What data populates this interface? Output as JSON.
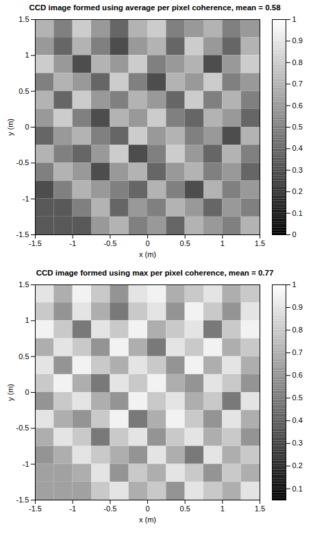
{
  "chart_data": [
    {
      "type": "heatmap",
      "title": "CCD image formed using average per pixel coherence, mean = 0.58",
      "xlabel": "x (m)",
      "ylabel": "y (m)",
      "xlim": [
        -1.5,
        1.5
      ],
      "ylim": [
        -1.5,
        1.5
      ],
      "xticks": [
        -1.5,
        -1,
        -0.5,
        0,
        0.5,
        1,
        1.5
      ],
      "yticks": [
        -1.5,
        -1,
        -0.5,
        0,
        0.5,
        1,
        1.5
      ],
      "x": [
        -1.375,
        -1.125,
        -0.875,
        -0.625,
        -0.375,
        -0.125,
        0.125,
        0.375,
        0.625,
        0.875,
        1.125,
        1.375
      ],
      "y": [
        1.375,
        1.125,
        0.875,
        0.625,
        0.375,
        0.125,
        -0.125,
        -0.375,
        -0.625,
        -0.875,
        -1.125,
        -1.375
      ],
      "cells": [
        [
          0.7,
          0.5,
          0.8,
          0.6,
          0.4,
          0.7,
          0.8,
          0.5,
          0.6,
          0.7,
          0.5,
          0.6
        ],
        [
          0.6,
          0.4,
          0.7,
          0.5,
          0.3,
          0.6,
          0.7,
          0.4,
          0.8,
          0.6,
          0.4,
          0.7
        ],
        [
          0.8,
          0.6,
          0.3,
          0.7,
          0.6,
          0.8,
          0.5,
          0.6,
          0.7,
          0.3,
          0.6,
          0.8
        ],
        [
          0.5,
          0.7,
          0.6,
          0.4,
          0.8,
          0.5,
          0.3,
          0.7,
          0.6,
          0.8,
          0.5,
          0.6
        ],
        [
          0.7,
          0.4,
          0.8,
          0.6,
          0.5,
          0.7,
          0.6,
          0.4,
          0.8,
          0.5,
          0.7,
          0.5
        ],
        [
          0.6,
          0.8,
          0.5,
          0.3,
          0.7,
          0.6,
          0.8,
          0.5,
          0.4,
          0.7,
          0.6,
          0.4
        ],
        [
          0.4,
          0.6,
          0.7,
          0.5,
          0.4,
          0.8,
          0.6,
          0.7,
          0.5,
          0.6,
          0.3,
          0.7
        ],
        [
          0.7,
          0.5,
          0.4,
          0.6,
          0.8,
          0.3,
          0.5,
          0.8,
          0.6,
          0.4,
          0.7,
          0.5
        ],
        [
          0.5,
          0.7,
          0.6,
          0.3,
          0.6,
          0.7,
          0.4,
          0.6,
          0.7,
          0.5,
          0.6,
          0.4
        ],
        [
          0.3,
          0.5,
          0.7,
          0.6,
          0.5,
          0.4,
          0.7,
          0.5,
          0.3,
          0.7,
          0.5,
          0.6
        ],
        [
          0.35,
          0.35,
          0.5,
          0.7,
          0.4,
          0.6,
          0.5,
          0.7,
          0.6,
          0.4,
          0.6,
          0.5
        ],
        [
          0.35,
          0.35,
          0.35,
          0.6,
          0.7,
          0.5,
          0.6,
          0.4,
          0.7,
          0.6,
          0.5,
          0.7
        ]
      ],
      "colorbar_range": [
        0,
        1
      ],
      "colorbar_ticks": [
        0,
        0.1,
        0.2,
        0.3,
        0.4,
        0.5,
        0.6,
        0.7,
        0.8,
        0.9,
        1
      ]
    },
    {
      "type": "heatmap",
      "title": "CCD image formed using max per pixel coherence, mean = 0.77",
      "xlabel": "x (m)",
      "ylabel": "y (m)",
      "xlim": [
        -1.5,
        1.5
      ],
      "ylim": [
        -1.5,
        1.5
      ],
      "xticks": [
        -1.5,
        -1,
        -0.5,
        0,
        0.5,
        1,
        1.5
      ],
      "yticks": [
        -1.5,
        -1,
        -0.5,
        0,
        0.5,
        1,
        1.5
      ],
      "x": [
        -1.375,
        -1.125,
        -0.875,
        -0.625,
        -0.375,
        -0.125,
        0.125,
        0.375,
        0.625,
        0.875,
        1.125,
        1.375
      ],
      "y": [
        1.375,
        1.125,
        0.875,
        0.625,
        0.375,
        0.125,
        -0.125,
        -0.375,
        -0.625,
        -0.875,
        -1.125,
        -1.375
      ],
      "cells": [
        [
          0.9,
          0.7,
          0.95,
          0.8,
          0.6,
          0.9,
          0.95,
          0.7,
          0.8,
          0.9,
          0.7,
          0.8
        ],
        [
          0.8,
          0.6,
          0.9,
          0.7,
          0.5,
          0.8,
          0.9,
          0.6,
          0.95,
          0.8,
          0.6,
          0.9
        ],
        [
          0.95,
          0.8,
          0.5,
          0.9,
          0.8,
          0.95,
          0.7,
          0.8,
          0.9,
          0.5,
          0.8,
          0.95
        ],
        [
          0.7,
          0.9,
          0.8,
          0.6,
          0.95,
          0.7,
          0.5,
          0.9,
          0.8,
          0.95,
          0.7,
          0.8
        ],
        [
          0.9,
          0.6,
          0.95,
          0.8,
          0.7,
          0.9,
          0.8,
          0.6,
          0.95,
          0.7,
          0.9,
          0.7
        ],
        [
          0.8,
          0.95,
          0.7,
          0.5,
          0.9,
          0.8,
          0.95,
          0.7,
          0.6,
          0.9,
          0.8,
          0.6
        ],
        [
          0.6,
          0.8,
          0.9,
          0.7,
          0.6,
          0.95,
          0.8,
          0.9,
          0.7,
          0.8,
          0.5,
          0.9
        ],
        [
          0.9,
          0.7,
          0.6,
          0.8,
          0.95,
          0.5,
          0.7,
          0.95,
          0.8,
          0.6,
          0.9,
          0.7
        ],
        [
          0.7,
          0.9,
          0.8,
          0.5,
          0.8,
          0.9,
          0.6,
          0.8,
          0.9,
          0.7,
          0.8,
          0.6
        ],
        [
          0.6,
          0.7,
          0.9,
          0.8,
          0.7,
          0.6,
          0.9,
          0.7,
          0.5,
          0.9,
          0.7,
          0.8
        ],
        [
          0.65,
          0.65,
          0.7,
          0.9,
          0.6,
          0.8,
          0.7,
          0.9,
          0.8,
          0.6,
          0.8,
          0.7
        ],
        [
          0.65,
          0.65,
          0.65,
          0.8,
          0.9,
          0.7,
          0.8,
          0.6,
          0.9,
          0.8,
          0.7,
          0.9
        ]
      ],
      "colorbar_range": [
        0.05,
        1
      ],
      "colorbar_ticks": [
        0.1,
        0.2,
        0.3,
        0.4,
        0.5,
        0.6,
        0.7,
        0.8,
        0.9,
        1
      ]
    }
  ]
}
